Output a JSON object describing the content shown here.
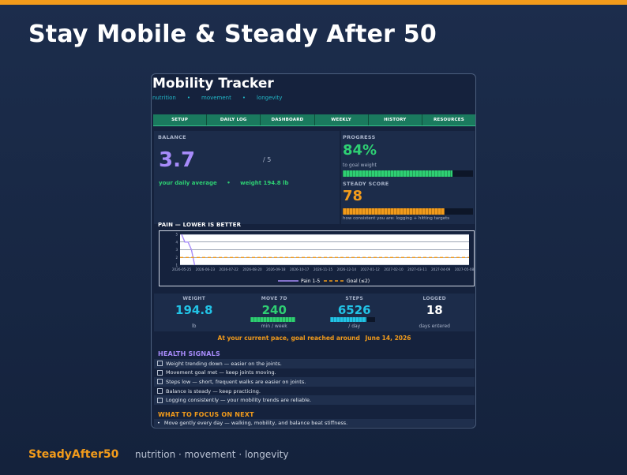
{
  "slide": {
    "headline": "Stay Mobile & Steady After 50",
    "brand": "SteadyAfter50",
    "brand_tagline": "nutrition · movement · longevity",
    "accent_color": "#f29b1b"
  },
  "app": {
    "title": "Mobility Tracker",
    "tagline": [
      "nutrition",
      "movement",
      "longevity"
    ],
    "nav": [
      "SETUP",
      "DAILY LOG",
      "DASHBOARD",
      "WEEKLY",
      "HISTORY",
      "RESOURCES"
    ]
  },
  "balance": {
    "label": "BALANCE",
    "value": "3.7",
    "max": "/ 5",
    "subtitle_left": "your daily average",
    "separator": "•",
    "subtitle_right": "weight 194.8 lb",
    "color": "#a78bfa"
  },
  "progress": {
    "label": "PROGRESS",
    "value": "84%",
    "subtitle": "to goal weight",
    "fraction": 0.84,
    "color": "#2ecf73"
  },
  "steady": {
    "label": "STEADY SCORE",
    "value": "78",
    "subtitle": "how consistent you are: logging + hitting targets",
    "fraction": 0.78,
    "color": "#f29b1b"
  },
  "pain_chart_title": "PAIN — LOWER IS BETTER",
  "chart_data": {
    "type": "line",
    "title": "PAIN — LOWER IS BETTER",
    "x": [
      "2026-05-25",
      "2026-05-27",
      "2026-05-29",
      "2026-05-31",
      "2026-06-02"
    ],
    "x_ticks": [
      "2026-05-25",
      "2026-06-23",
      "2026-07-22",
      "2026-08-20",
      "2026-09-18",
      "2026-10-17",
      "2026-11-15",
      "2026-12-14",
      "2027-01-12",
      "2027-02-10",
      "2027-03-11",
      "2027-04-09",
      "2027-05-08"
    ],
    "y_ticks": [
      "1",
      "2",
      "3",
      "4",
      "5"
    ],
    "ylim": [
      1,
      5
    ],
    "grid": true,
    "legend": "bottom-center",
    "series": [
      {
        "name": "Pain 1-5",
        "values": [
          5,
          4,
          4,
          3,
          1
        ],
        "color": "#a78bfa",
        "style": "solid"
      },
      {
        "name": "Goal (≤2)",
        "values": [
          2,
          2,
          2,
          2,
          2
        ],
        "color": "#f29b1b",
        "style": "dashed"
      }
    ]
  },
  "stats": [
    {
      "label": "WEIGHT",
      "value": "194.8",
      "unit": "lb",
      "color": "#22c3e6"
    },
    {
      "label": "MOVE 7D",
      "value": "240",
      "unit": "min / week",
      "color": "#2ecf73",
      "fraction": 1.0
    },
    {
      "label": "STEPS",
      "value": "6526",
      "unit": "/ day",
      "color": "#22c3e6",
      "fraction": 0.8
    },
    {
      "label": "LOGGED",
      "value": "18",
      "unit": "days entered",
      "color": "#ffffff"
    }
  ],
  "pace": {
    "text": "At your current pace, goal reached around",
    "date": "June 14, 2026"
  },
  "health_signals": {
    "title": "HEALTH SIGNALS",
    "color": "#a78bfa",
    "items": [
      "Weight trending down — easier on the joints.",
      "Movement goal met — keep joints moving.",
      "Steps low — short, frequent walks are easier on joints.",
      "Balance is steady — keep practicing.",
      "Logging consistently — your mobility trends are reliable."
    ]
  },
  "focus": {
    "title": "WHAT TO FOCUS ON NEXT",
    "bullet": "•",
    "items": [
      "Move gently every day — walking, mobility, and balance beat stiffness."
    ]
  }
}
